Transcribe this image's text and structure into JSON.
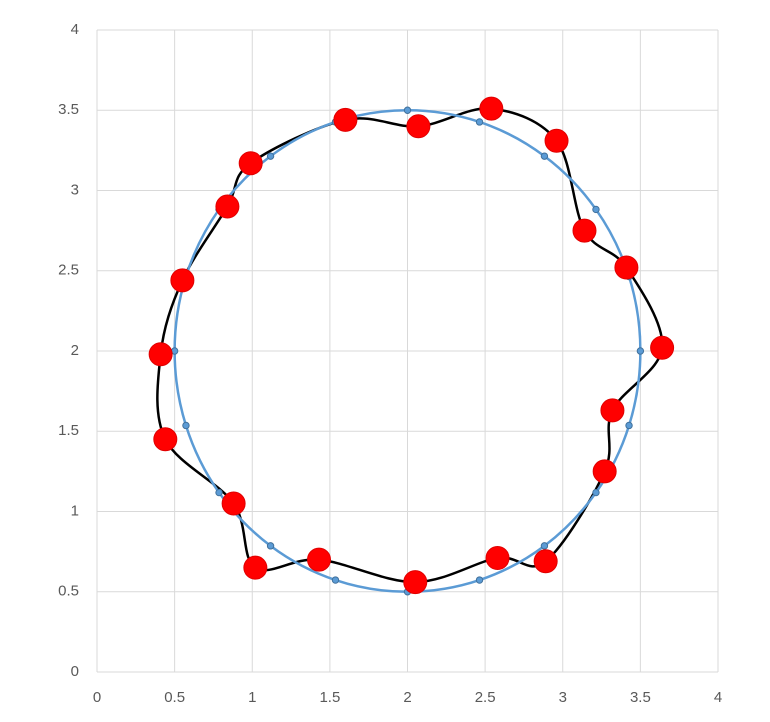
{
  "chart_data": {
    "type": "scatter",
    "xlim": [
      0,
      4
    ],
    "ylim": [
      0,
      4
    ],
    "xticks": [
      0,
      0.5,
      1,
      1.5,
      2,
      2.5,
      3,
      3.5,
      4
    ],
    "yticks": [
      0,
      0.5,
      1,
      1.5,
      2,
      2.5,
      3,
      3.5,
      4
    ],
    "grid": true,
    "smooth": true,
    "closed": true,
    "series": [
      {
        "line_color": "#000000",
        "color": "#ff0000",
        "marker": "large",
        "x": [
          0.41,
          0.44,
          0.88,
          1.02,
          1.43,
          2.05,
          2.58,
          2.89,
          3.27,
          3.32,
          3.64,
          3.41,
          3.14,
          2.96,
          2.54,
          2.07,
          1.6,
          0.99,
          0.84,
          0.55
        ],
        "values": [
          1.98,
          1.45,
          1.05,
          0.65,
          0.7,
          0.56,
          0.71,
          0.69,
          1.25,
          1.63,
          2.02,
          2.52,
          2.75,
          3.31,
          3.51,
          3.4,
          3.44,
          3.17,
          2.9,
          2.44
        ]
      },
      {
        "line_color": "#5b9bd5",
        "color": "#5b9bd5",
        "marker": "small",
        "x": [
          3.5,
          3.427,
          3.214,
          2.882,
          2.464,
          2,
          1.536,
          1.118,
          0.786,
          0.573,
          0.5,
          0.573,
          0.786,
          1.118,
          1.536,
          2,
          2.464,
          2.882,
          3.214,
          3.427
        ],
        "values": [
          2,
          2.464,
          2.882,
          3.214,
          3.427,
          3.5,
          3.427,
          3.214,
          2.882,
          2.464,
          2,
          1.536,
          1.118,
          0.786,
          0.573,
          0.5,
          0.573,
          0.786,
          1.118,
          1.536
        ]
      }
    ]
  }
}
